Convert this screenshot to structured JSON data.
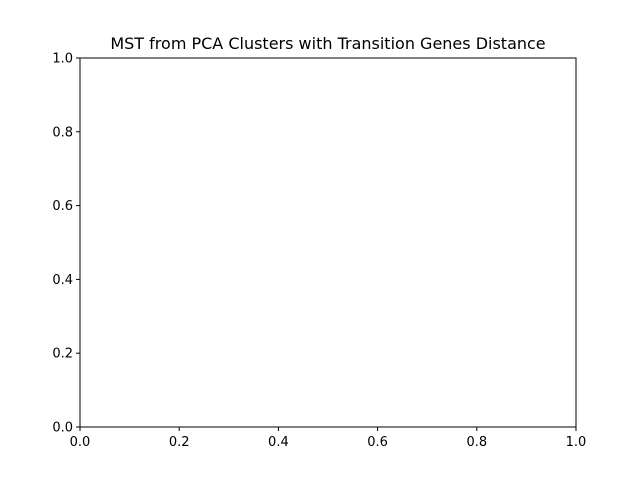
{
  "chart_data": {
    "type": "scatter",
    "title": "MST from PCA Clusters with Transition Genes Distance",
    "xlabel": "",
    "ylabel": "",
    "xlim": [
      0.0,
      1.0
    ],
    "ylim": [
      0.0,
      1.0
    ],
    "xticks": [
      0.0,
      0.2,
      0.4,
      0.6,
      0.8,
      1.0
    ],
    "yticks": [
      0.0,
      0.2,
      0.4,
      0.6,
      0.8,
      1.0
    ],
    "xtick_labels": [
      "0.0",
      "0.2",
      "0.4",
      "0.6",
      "0.8",
      "1.0"
    ],
    "ytick_labels": [
      "0.0",
      "0.2",
      "0.4",
      "0.6",
      "0.8",
      "1.0"
    ],
    "series": [],
    "grid": false,
    "legend": "none"
  }
}
